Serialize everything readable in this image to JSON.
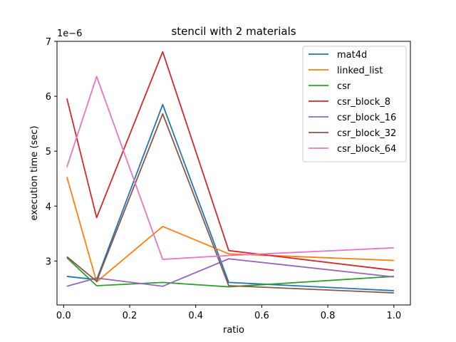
{
  "chart_data": {
    "type": "line",
    "title": "stencil with 2 materials",
    "xlabel": "ratio",
    "ylabel": "execution time (sec)",
    "y_offset_label": "1e−6",
    "y_scale_factor": 1e-06,
    "xlim": [
      -0.02,
      1.05
    ],
    "ylim": [
      2.2e-06,
      7e-06
    ],
    "xticks": [
      0.0,
      0.2,
      0.4,
      0.6,
      0.8,
      1.0
    ],
    "xtick_labels": [
      "0.0",
      "0.2",
      "0.4",
      "0.6",
      "0.8",
      "1.0"
    ],
    "yticks": [
      3e-06,
      4e-06,
      5e-06,
      6e-06,
      7e-06
    ],
    "ytick_labels": [
      "3",
      "4",
      "5",
      "6",
      "7"
    ],
    "grid": false,
    "legend_position": "top-right",
    "x": [
      0.01,
      0.1,
      0.3,
      0.5,
      1.0
    ],
    "series": [
      {
        "name": "mat4d",
        "color": "#1f77b4",
        "values": [
          2.72e-06,
          2.66e-06,
          5.85e-06,
          2.61e-06,
          2.46e-06
        ]
      },
      {
        "name": "linked_list",
        "color": "#ff7f0e",
        "values": [
          4.53e-06,
          2.62e-06,
          3.63e-06,
          3.13e-06,
          3.01e-06
        ]
      },
      {
        "name": "csr",
        "color": "#2ca02c",
        "values": [
          3.06e-06,
          2.55e-06,
          2.61e-06,
          2.53e-06,
          2.72e-06
        ]
      },
      {
        "name": "csr_block_8",
        "color": "#d62728",
        "values": [
          5.96e-06,
          3.79e-06,
          6.81e-06,
          3.19e-06,
          2.83e-06
        ]
      },
      {
        "name": "csr_block_16",
        "color": "#9467bd",
        "values": [
          2.54e-06,
          2.69e-06,
          2.54e-06,
          3.04e-06,
          2.71e-06
        ]
      },
      {
        "name": "csr_block_32",
        "color": "#8c564b",
        "values": [
          3.08e-06,
          2.63e-06,
          5.68e-06,
          2.55e-06,
          2.42e-06
        ]
      },
      {
        "name": "csr_block_64",
        "color": "#e377c2",
        "values": [
          4.71e-06,
          6.36e-06,
          3.03e-06,
          3.1e-06,
          3.24e-06
        ]
      }
    ]
  }
}
